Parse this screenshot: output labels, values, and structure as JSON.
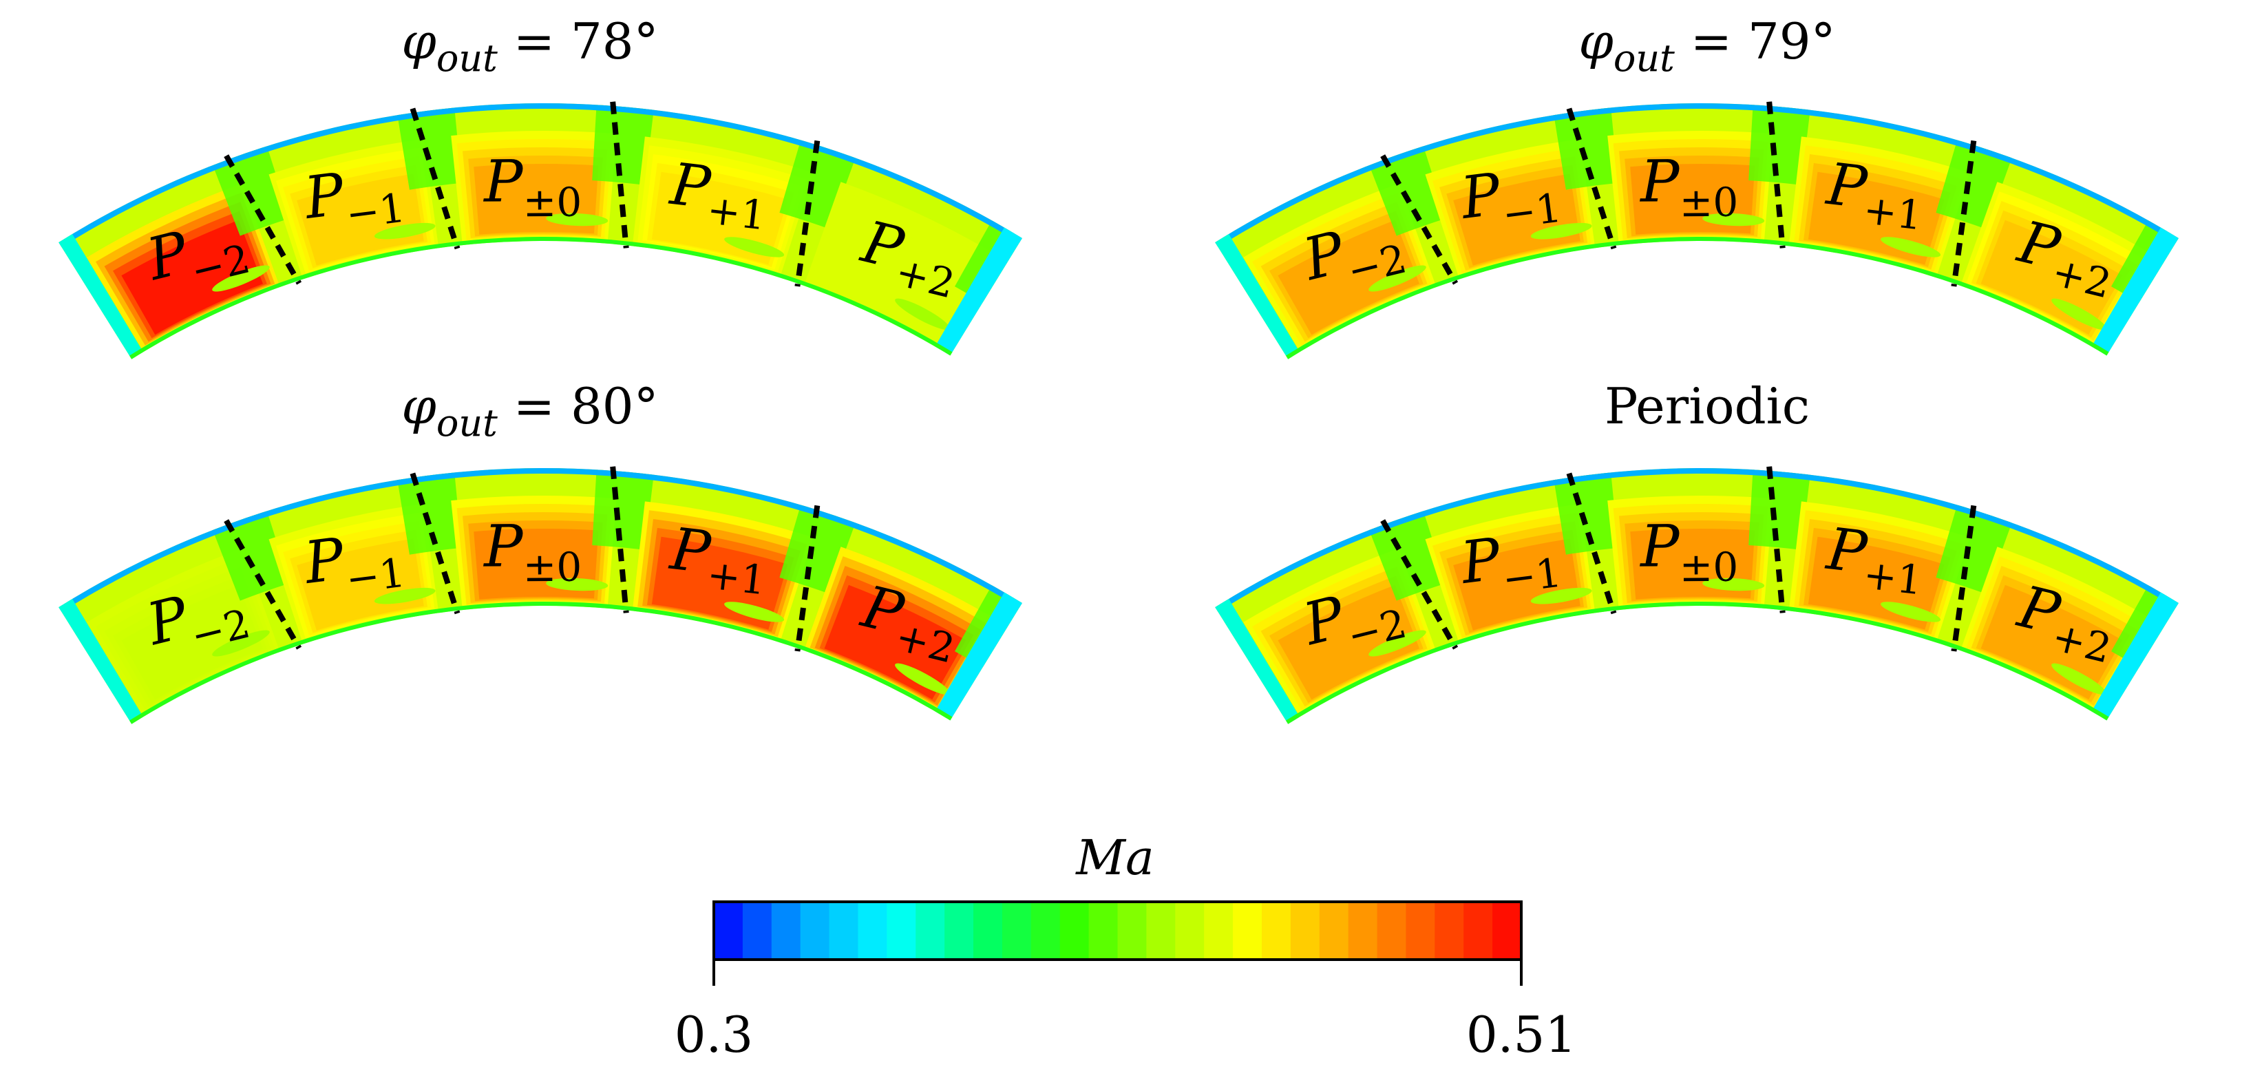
{
  "panels": [
    {
      "title": {
        "var": "φ",
        "sub": "out",
        "rest": " = 78°"
      },
      "passages": [
        {
          "base": "P",
          "sub": "−2"
        },
        {
          "base": "P",
          "sub": "−1"
        },
        {
          "base": "P",
          "sub": "±0"
        },
        {
          "base": "P",
          "sub": "+1"
        },
        {
          "base": "P",
          "sub": "+2"
        }
      ],
      "intensity": [
        0.97,
        0.72,
        0.78,
        0.7,
        0.62
      ]
    },
    {
      "title": {
        "var": "φ",
        "sub": "out",
        "rest": " = 79°"
      },
      "passages": [
        {
          "base": "P",
          "sub": "−2"
        },
        {
          "base": "P",
          "sub": "−1"
        },
        {
          "base": "P",
          "sub": "±0"
        },
        {
          "base": "P",
          "sub": "+1"
        },
        {
          "base": "P",
          "sub": "+2"
        }
      ],
      "intensity": [
        0.78,
        0.78,
        0.8,
        0.78,
        0.74
      ]
    },
    {
      "title": {
        "var": "φ",
        "sub": "out",
        "rest": " = 80°"
      },
      "passages": [
        {
          "base": "P",
          "sub": "−2"
        },
        {
          "base": "P",
          "sub": "−1"
        },
        {
          "base": "P",
          "sub": "±0"
        },
        {
          "base": "P",
          "sub": "+1"
        },
        {
          "base": "P",
          "sub": "+2"
        }
      ],
      "intensity": [
        0.6,
        0.72,
        0.82,
        0.9,
        0.94
      ]
    },
    {
      "title": {
        "plain": "Periodic"
      },
      "passages": [
        {
          "base": "P",
          "sub": "−2"
        },
        {
          "base": "P",
          "sub": "−1"
        },
        {
          "base": "P",
          "sub": "±0"
        },
        {
          "base": "P",
          "sub": "+1"
        },
        {
          "base": "P",
          "sub": "+2"
        }
      ],
      "intensity": [
        0.78,
        0.8,
        0.8,
        0.8,
        0.78
      ]
    }
  ],
  "colorbar": {
    "label": "Ma",
    "min_label": "0.3",
    "max_label": "0.51",
    "min": 0.3,
    "max": 0.51,
    "levels": 28,
    "colors": [
      "#0000ff",
      "#00aaff",
      "#00ffff",
      "#00ff66",
      "#33ff00",
      "#aaff00",
      "#ffff00",
      "#ffaa00",
      "#ff5500",
      "#ff0000"
    ]
  }
}
